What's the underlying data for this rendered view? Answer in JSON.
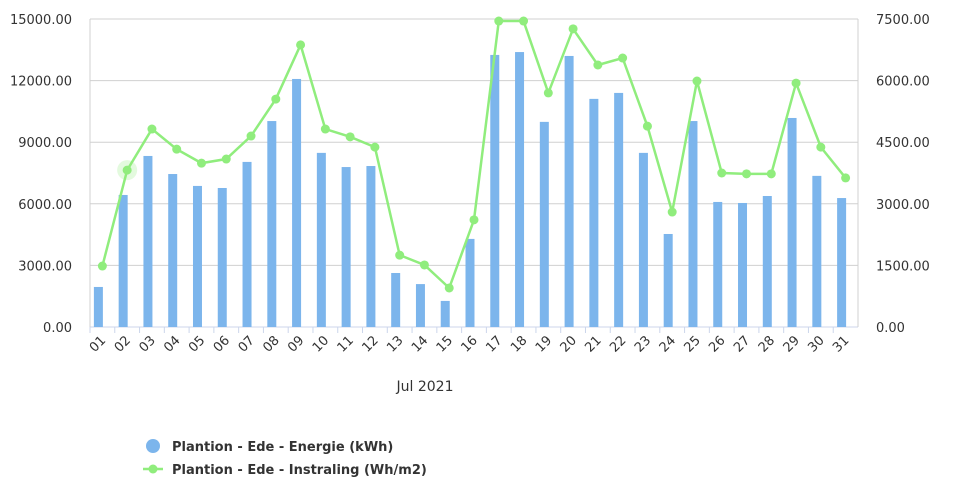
{
  "chart_data": {
    "type": "bar+line",
    "xlabel": "Jul 2021",
    "categories": [
      "01",
      "02",
      "03",
      "04",
      "05",
      "06",
      "07",
      "08",
      "09",
      "10",
      "11",
      "12",
      "13",
      "14",
      "15",
      "16",
      "17",
      "18",
      "19",
      "20",
      "21",
      "22",
      "23",
      "24",
      "25",
      "26",
      "27",
      "28",
      "29",
      "30",
      "31"
    ],
    "left_axis": {
      "ylim": [
        0,
        15000
      ],
      "ticks": [
        "0.00",
        "3000.00",
        "6000.00",
        "9000.00",
        "12000.00",
        "15000.00"
      ]
    },
    "right_axis": {
      "ylim": [
        0,
        7500
      ],
      "ticks": [
        "0.00",
        "1500.00",
        "3000.00",
        "4500.00",
        "6000.00",
        "7500.00"
      ]
    },
    "grid": true,
    "legend_position": "bottom-left",
    "series": [
      {
        "name": "Plantion - Ede - Energie (kWh)",
        "type": "bar",
        "axis": "left",
        "color": "#7cb5ec",
        "values": [
          1950,
          6430,
          8330,
          7450,
          6870,
          6770,
          8040,
          10030,
          12080,
          8480,
          7790,
          7840,
          2630,
          2090,
          1270,
          4290,
          13250,
          13390,
          9990,
          13200,
          11110,
          11400,
          8480,
          4530,
          10030,
          6090,
          6040,
          6380,
          10180,
          7360,
          6280
        ]
      },
      {
        "name": "Plantion - Ede - Instraling (Wh/m2)",
        "type": "line",
        "axis": "right",
        "color": "#90ed7d",
        "values": [
          1485,
          3820,
          4820,
          4330,
          3990,
          4090,
          4650,
          5550,
          6870,
          4820,
          4630,
          4380,
          1750,
          1510,
          950,
          2610,
          7450,
          7450,
          5700,
          7260,
          6380,
          6550,
          4890,
          2800,
          5990,
          3750,
          3730,
          3730,
          5940,
          4380,
          3630
        ]
      }
    ]
  }
}
